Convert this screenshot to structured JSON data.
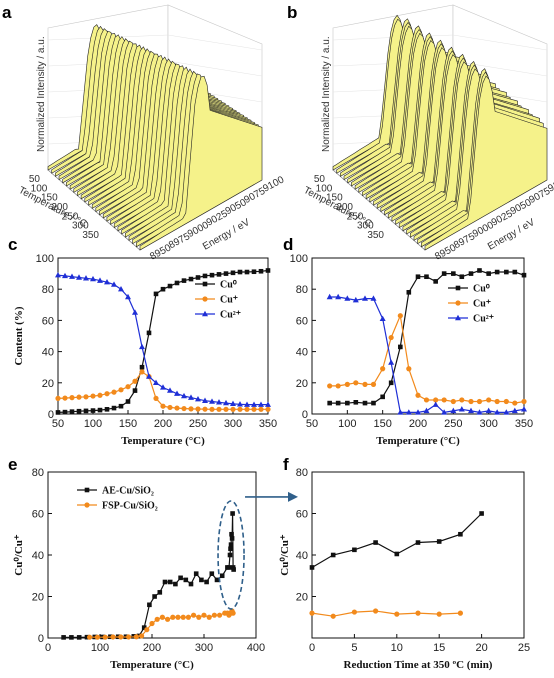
{
  "panels_3d": [
    {
      "letter": "a",
      "zlabel": "Normalized Intensity / a.u.",
      "xlabel": "Energy / eV",
      "ylabel": "Temperature / °C",
      "x_ticks": [
        "8950",
        "8975",
        "9000",
        "9025",
        "9050",
        "9075",
        "9100"
      ],
      "y_ticks": [
        "50",
        "100",
        "150",
        "200",
        "250",
        "300",
        "350"
      ],
      "surface_color": "#f5f28a"
    },
    {
      "letter": "b",
      "zlabel": "Normalized Intensity / a.u.",
      "xlabel": "Energy / eV",
      "ylabel": "Temperature / °C",
      "x_ticks": [
        "8950",
        "8975",
        "9000",
        "9025",
        "9050",
        "9075",
        "9100"
      ],
      "y_ticks": [
        "50",
        "100",
        "150",
        "200",
        "250",
        "300",
        "350"
      ],
      "surface_color": "#f5f28a"
    }
  ],
  "chart_data": [
    {
      "id": "c",
      "letter": "c",
      "type": "line",
      "xlabel": "Temperature (°C)",
      "ylabel": "Content (%)",
      "xlim": [
        50,
        350
      ],
      "ylim": [
        0,
        100
      ],
      "x_ticks": [
        50,
        100,
        150,
        200,
        250,
        300,
        350
      ],
      "y_ticks": [
        0,
        20,
        40,
        60,
        80,
        100
      ],
      "legend": "right-middle",
      "series": [
        {
          "name": "Cu⁰",
          "color": "#111111",
          "marker": "square",
          "x": [
            50,
            60,
            70,
            80,
            90,
            100,
            110,
            120,
            130,
            140,
            150,
            160,
            170,
            180,
            190,
            200,
            210,
            220,
            230,
            240,
            250,
            260,
            270,
            280,
            290,
            300,
            310,
            320,
            330,
            340,
            350
          ],
          "y": [
            1,
            1.2,
            1.5,
            1.8,
            2,
            2.2,
            2.5,
            3,
            3.8,
            5,
            8,
            15,
            30,
            52,
            77,
            80,
            82,
            84,
            85.5,
            86.5,
            87.5,
            88.5,
            89,
            89.5,
            90,
            90.5,
            91,
            91,
            91.2,
            91.5,
            92
          ]
        },
        {
          "name": "Cu⁺",
          "color": "#f28a1c",
          "marker": "circle",
          "x": [
            50,
            60,
            70,
            80,
            90,
            100,
            110,
            120,
            130,
            140,
            150,
            160,
            170,
            180,
            190,
            200,
            210,
            220,
            230,
            240,
            250,
            260,
            270,
            280,
            290,
            300,
            310,
            320,
            330,
            340,
            350
          ],
          "y": [
            10,
            10.2,
            10.5,
            10.8,
            11,
            11.5,
            12,
            13,
            14,
            15.5,
            17.5,
            21,
            27,
            24,
            10,
            5,
            4.2,
            3.8,
            3.5,
            3.3,
            3.2,
            3.1,
            3,
            3,
            3,
            3,
            3,
            3,
            3,
            3,
            3
          ]
        },
        {
          "name": "Cu²⁺",
          "color": "#1f2fd6",
          "marker": "triangle",
          "x": [
            50,
            60,
            70,
            80,
            90,
            100,
            110,
            120,
            130,
            140,
            150,
            160,
            170,
            180,
            190,
            200,
            210,
            220,
            230,
            240,
            250,
            260,
            270,
            280,
            290,
            300,
            310,
            320,
            330,
            340,
            350
          ],
          "y": [
            89,
            88.5,
            88,
            87.5,
            87,
            86.5,
            85.5,
            84.5,
            83,
            80,
            75,
            65,
            43,
            24,
            20,
            17,
            15,
            13,
            11.5,
            10.5,
            9.5,
            8.5,
            8,
            7.5,
            7,
            6.5,
            6.2,
            6,
            6,
            6,
            6
          ]
        }
      ]
    },
    {
      "id": "d",
      "letter": "d",
      "type": "line",
      "xlabel": "Temperature (°C)",
      "ylabel": "",
      "xlim": [
        50,
        350
      ],
      "ylim": [
        0,
        100
      ],
      "x_ticks": [
        50,
        100,
        150,
        200,
        250,
        300,
        350
      ],
      "y_ticks": [
        0,
        20,
        40,
        60,
        80,
        100
      ],
      "legend": "right-middle",
      "series": [
        {
          "name": "Cu⁰",
          "color": "#111111",
          "marker": "square",
          "x": [
            75,
            87,
            100,
            112,
            125,
            137,
            150,
            162,
            175,
            187,
            200,
            212,
            225,
            237,
            250,
            262,
            275,
            287,
            300,
            312,
            325,
            337,
            350
          ],
          "y": [
            7,
            7,
            7,
            7.5,
            7,
            7,
            11,
            20,
            43,
            78,
            88,
            88,
            85,
            90,
            90,
            88,
            90,
            92,
            90,
            91,
            91,
            91,
            89
          ]
        },
        {
          "name": "Cu⁺",
          "color": "#f28a1c",
          "marker": "circle",
          "x": [
            75,
            87,
            100,
            112,
            125,
            137,
            150,
            162,
            175,
            187,
            200,
            212,
            225,
            237,
            250,
            262,
            275,
            287,
            300,
            312,
            325,
            337,
            350
          ],
          "y": [
            18,
            18,
            19,
            20,
            19,
            19,
            29,
            49,
            63,
            29,
            12,
            9,
            9,
            9,
            8,
            9,
            8,
            8,
            9,
            8,
            8,
            7,
            8
          ]
        },
        {
          "name": "Cu²⁺",
          "color": "#1f2fd6",
          "marker": "triangle",
          "x": [
            75,
            87,
            100,
            112,
            125,
            137,
            150,
            162,
            175,
            187,
            200,
            212,
            225,
            237,
            250,
            262,
            275,
            287,
            300,
            312,
            325,
            337,
            350
          ],
          "y": [
            75,
            75,
            74,
            73,
            74,
            74,
            61,
            33,
            1,
            1,
            1,
            2,
            6,
            1,
            2,
            3,
            2,
            1,
            2,
            1,
            1,
            2,
            3
          ]
        }
      ]
    },
    {
      "id": "e",
      "letter": "e",
      "type": "line",
      "xlabel": "Temperature (°C)",
      "ylabel": "Cu⁰/Cu⁺",
      "xlim": [
        0,
        400
      ],
      "ylim": [
        0,
        80
      ],
      "x_ticks": [
        0,
        100,
        200,
        300,
        400
      ],
      "y_ticks": [
        0,
        20,
        40,
        60,
        80
      ],
      "legend": "top-left",
      "series": [
        {
          "name": "AE-Cu/SiO₂",
          "color": "#111111",
          "marker": "square",
          "x": [
            30,
            45,
            60,
            75,
            90,
            105,
            120,
            135,
            150,
            165,
            175,
            185,
            195,
            205,
            215,
            225,
            235,
            245,
            255,
            265,
            275,
            285,
            295,
            305,
            315,
            325,
            335,
            345,
            348,
            350,
            351,
            352,
            353,
            354,
            355,
            356,
            357
          ],
          "y": [
            0.3,
            0.3,
            0.3,
            0.4,
            0.5,
            0.5,
            0.6,
            0.6,
            0.6,
            0.8,
            1,
            5,
            16,
            20,
            22,
            27,
            27,
            26,
            29,
            28,
            26,
            31,
            28,
            27,
            31,
            28,
            30,
            34,
            34,
            40,
            43,
            45,
            50,
            48,
            60,
            34,
            33
          ]
        },
        {
          "name": "FSP-Cu/SiO₂",
          "color": "#f28a1c",
          "marker": "circle",
          "x": [
            80,
            95,
            110,
            125,
            140,
            155,
            170,
            180,
            190,
            200,
            210,
            220,
            230,
            240,
            250,
            260,
            270,
            280,
            290,
            300,
            310,
            320,
            330,
            340,
            345,
            348,
            350,
            352,
            354,
            356
          ],
          "y": [
            0.4,
            0.4,
            0.4,
            0.5,
            0.5,
            0.5,
            0.6,
            1,
            4,
            7,
            9,
            10,
            9,
            10,
            10,
            10,
            10,
            11,
            10,
            11,
            10,
            11,
            11,
            12,
            12,
            11,
            12,
            12,
            13,
            12
          ]
        }
      ],
      "annotation": "dashed-ellipse-arrow"
    },
    {
      "id": "f",
      "letter": "f",
      "type": "line",
      "xlabel": "Reduction Time at 350 ºC (min)",
      "ylabel": "Cu⁰/Cu⁺",
      "xlim": [
        0,
        25
      ],
      "ylim": [
        0,
        80
      ],
      "x_ticks": [
        0,
        5,
        10,
        15,
        20,
        25
      ],
      "y_ticks": [
        20,
        40,
        60,
        80
      ],
      "legend": "none",
      "series": [
        {
          "name": "AE-Cu/SiO₂",
          "color": "#111111",
          "marker": "square",
          "x": [
            0,
            2.5,
            5,
            7.5,
            10,
            12.5,
            15,
            17.5,
            20
          ],
          "y": [
            34,
            40,
            42.5,
            46,
            40.5,
            46,
            46.5,
            50,
            60
          ]
        },
        {
          "name": "FSP-Cu/SiO₂",
          "color": "#f28a1c",
          "marker": "circle",
          "x": [
            0,
            2.5,
            5,
            7.5,
            10,
            12.5,
            15,
            17.5
          ],
          "y": [
            12,
            10.5,
            12.5,
            13,
            11.5,
            12,
            11.5,
            12
          ]
        }
      ]
    }
  ]
}
